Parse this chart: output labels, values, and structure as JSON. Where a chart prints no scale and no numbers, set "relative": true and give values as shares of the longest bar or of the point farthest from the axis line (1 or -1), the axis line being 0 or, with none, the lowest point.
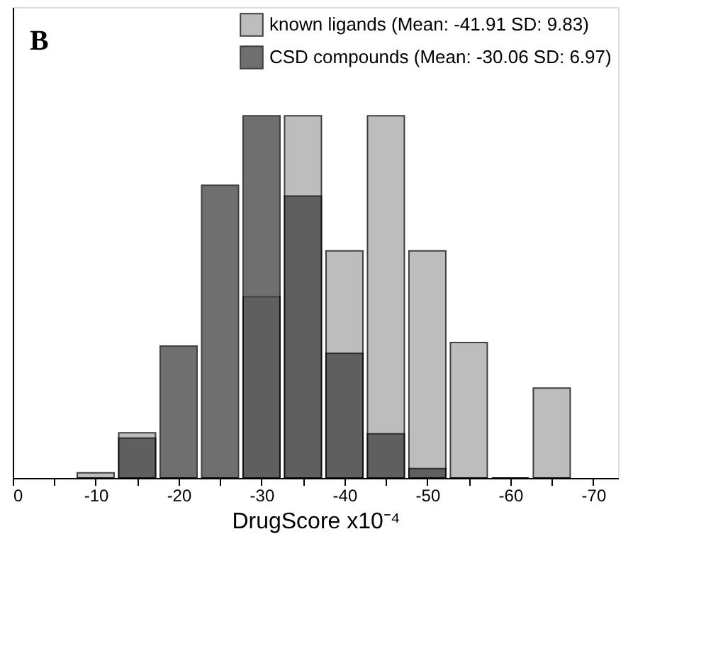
{
  "chart_data": {
    "type": "bar",
    "title": "B",
    "xlabel": "DrugScore x10⁻⁴",
    "relative": true,
    "x": [
      -10,
      -15,
      -20,
      -25,
      -30,
      -35,
      -40,
      -45,
      -50,
      -55,
      -60,
      -65
    ],
    "series": [
      {
        "name": "known ligands (Mean: -41.91 SD: 9.83)",
        "color": "#a8a8a8",
        "values": [
          0.014,
          0.125,
          0,
          0,
          0.5,
          1.0,
          0.627,
          1.0,
          0.627,
          0.374,
          0,
          0.248
        ]
      },
      {
        "name": "CSD compounds (Mean: -30.06 SD: 6.97)",
        "color": "#404040",
        "values": [
          0,
          0.11,
          0.364,
          0.808,
          1.0,
          0.778,
          0.344,
          0.122,
          0.026,
          0,
          0,
          0
        ]
      }
    ],
    "xlim": [
      0,
      -73
    ],
    "xticks": [
      0,
      {
        "value": -5,
        "label": null
      },
      -10,
      {
        "value": -15,
        "label": null
      },
      -20,
      {
        "value": -25,
        "label": null
      },
      -30,
      {
        "value": -35,
        "label": null
      },
      -40,
      {
        "value": -45,
        "label": null
      },
      -50,
      {
        "value": -55,
        "label": null
      },
      -60,
      {
        "value": -65,
        "label": null
      },
      -70
    ],
    "legend": "top right",
    "grid": false
  }
}
